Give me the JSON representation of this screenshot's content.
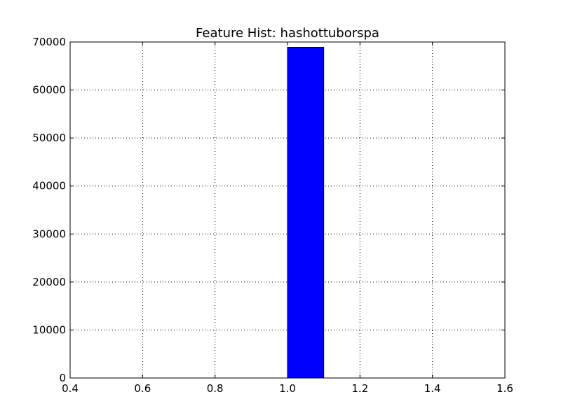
{
  "chart_data": {
    "type": "bar",
    "title": "Feature Hist: hashottuborspa",
    "xlabel": "",
    "ylabel": "",
    "xlim": [
      0.4,
      1.6
    ],
    "ylim": [
      0,
      70000
    ],
    "xticks": [
      "0.4",
      "0.6",
      "0.8",
      "1.0",
      "1.2",
      "1.4",
      "1.6"
    ],
    "yticks": [
      "0",
      "10000",
      "20000",
      "30000",
      "40000",
      "50000",
      "60000",
      "70000"
    ],
    "grid": true,
    "bar_color": "#0000ff",
    "bins": [
      {
        "x0": 0.5,
        "x1": 0.6,
        "count": 0
      },
      {
        "x0": 0.6,
        "x1": 0.7,
        "count": 0
      },
      {
        "x0": 0.7,
        "x1": 0.8,
        "count": 0
      },
      {
        "x0": 0.8,
        "x1": 0.9,
        "count": 0
      },
      {
        "x0": 0.9,
        "x1": 1.0,
        "count": 0
      },
      {
        "x0": 1.0,
        "x1": 1.1,
        "count": 68900
      },
      {
        "x0": 1.1,
        "x1": 1.2,
        "count": 0
      },
      {
        "x0": 1.2,
        "x1": 1.3,
        "count": 0
      },
      {
        "x0": 1.3,
        "x1": 1.4,
        "count": 0
      },
      {
        "x0": 1.4,
        "x1": 1.5,
        "count": 0
      }
    ]
  }
}
